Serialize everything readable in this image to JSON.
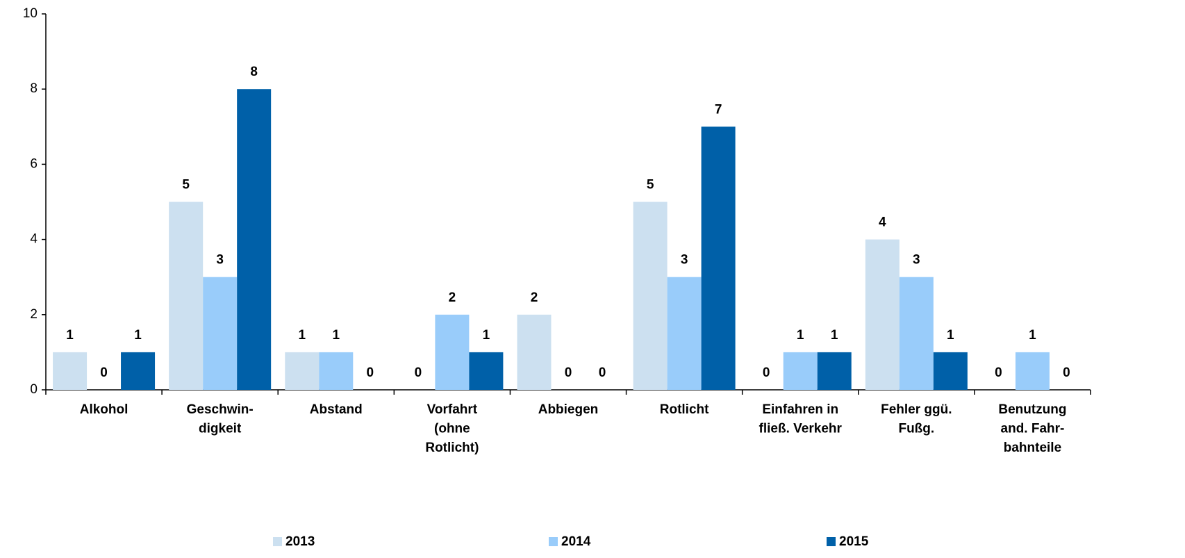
{
  "chart_data": {
    "type": "bar",
    "categories": [
      [
        "Alkohol"
      ],
      [
        "Geschwin-",
        "digkeit"
      ],
      [
        "Abstand"
      ],
      [
        "Vorfahrt",
        "(ohne",
        "Rotlicht)"
      ],
      [
        "Abbiegen"
      ],
      [
        "Rotlicht"
      ],
      [
        "Einfahren in",
        "fließ. Verkehr"
      ],
      [
        "Fehler ggü.",
        "Fußg."
      ],
      [
        "Benutzung",
        "and. Fahr-",
        "bahnteile"
      ]
    ],
    "series": [
      {
        "name": "2013",
        "color": "#cce0f0",
        "values": [
          1,
          5,
          1,
          0,
          2,
          5,
          0,
          4,
          0
        ]
      },
      {
        "name": "2014",
        "color": "#99ccfa",
        "values": [
          0,
          3,
          1,
          2,
          0,
          3,
          1,
          3,
          1
        ]
      },
      {
        "name": "2015",
        "color": "#0060a8",
        "values": [
          1,
          8,
          0,
          1,
          0,
          7,
          1,
          1,
          0
        ]
      }
    ],
    "ylim": [
      0,
      10
    ],
    "yticks": [
      0,
      2,
      4,
      6,
      8,
      10
    ],
    "grid": false,
    "legend": "bottom"
  }
}
